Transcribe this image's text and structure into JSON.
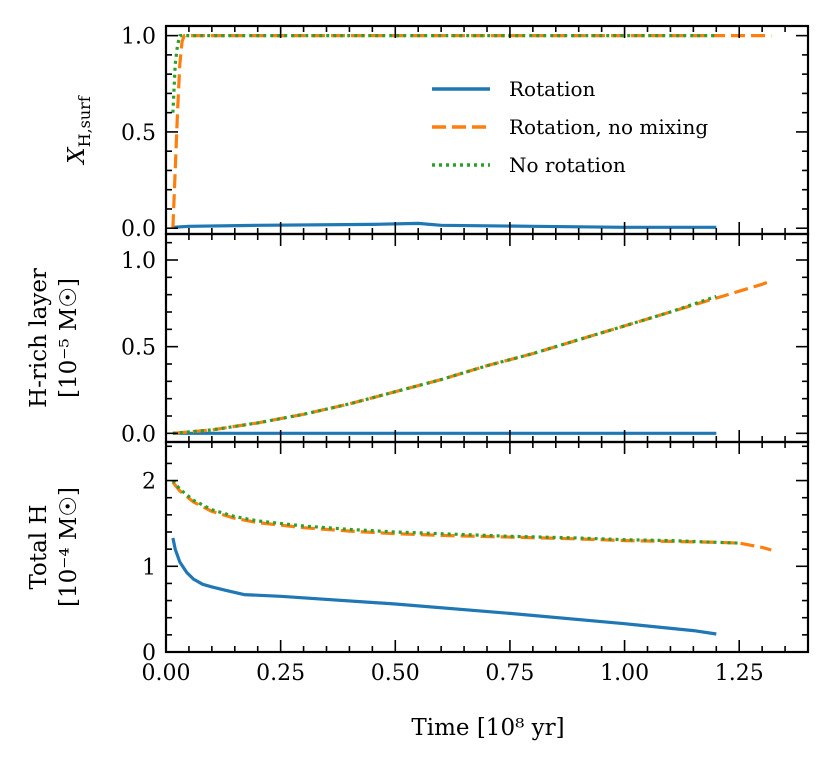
{
  "chart_data": {
    "type": "line",
    "shared_x": {
      "label": "Time [10⁸ yr]",
      "xlim": [
        0,
        1.4
      ],
      "ticks": [
        0.0,
        0.25,
        0.5,
        0.75,
        1.0,
        1.25
      ],
      "tick_labels": [
        "0.00",
        "0.25",
        "0.50",
        "0.75",
        "1.00",
        "1.25"
      ]
    },
    "legend": {
      "placement": "upper-right of top panel",
      "entries": [
        {
          "label": "Rotation",
          "color": "#1f77b4",
          "style": "solid"
        },
        {
          "label": "Rotation, no mixing",
          "color": "#ff7f0e",
          "style": "dashed"
        },
        {
          "label": "No rotation",
          "color": "#2ca02c",
          "style": "dotted"
        }
      ]
    },
    "panels": [
      {
        "id": "surface-h",
        "ylabel_main": "X",
        "ylabel_sub": "H,surf",
        "ylim": [
          -0.03,
          1.05
        ],
        "yticks": [
          0.0,
          0.5,
          1.0
        ],
        "ytick_labels": [
          "0.0",
          "0.5",
          "1.0"
        ],
        "series": [
          {
            "name": "Rotation",
            "color": "#1f77b4",
            "style": "solid",
            "points": [
              [
                0.015,
                0.005
              ],
              [
                0.05,
                0.01
              ],
              [
                0.2,
                0.015
              ],
              [
                0.45,
                0.02
              ],
              [
                0.55,
                0.025
              ],
              [
                0.6,
                0.015
              ],
              [
                0.8,
                0.01
              ],
              [
                1.0,
                0.005
              ],
              [
                1.2,
                0.005
              ]
            ]
          },
          {
            "name": "Rotation, no mixing",
            "color": "#ff7f0e",
            "style": "dashed",
            "points": [
              [
                0.015,
                0.0
              ],
              [
                0.02,
                0.3
              ],
              [
                0.025,
                0.6
              ],
              [
                0.03,
                0.85
              ],
              [
                0.035,
                0.97
              ],
              [
                0.04,
                1.0
              ],
              [
                0.1,
                1.0
              ],
              [
                0.5,
                1.0
              ],
              [
                1.0,
                1.0
              ],
              [
                1.32,
                1.0
              ]
            ]
          },
          {
            "name": "No rotation",
            "color": "#2ca02c",
            "style": "dotted",
            "points": [
              [
                0.015,
                0.6
              ],
              [
                0.02,
                0.85
              ],
              [
                0.025,
                0.95
              ],
              [
                0.03,
                1.0
              ],
              [
                0.1,
                1.0
              ],
              [
                0.5,
                1.0
              ],
              [
                1.0,
                1.0
              ],
              [
                1.2,
                1.0
              ]
            ]
          }
        ]
      },
      {
        "id": "h-rich-layer",
        "ylabel_line1": "H-rich layer",
        "ylabel_line2": "[10⁻⁵ M☉]",
        "ylim": [
          -0.05,
          1.15
        ],
        "yticks": [
          0.0,
          0.5,
          1.0
        ],
        "ytick_labels": [
          "0.0",
          "0.5",
          "1.0"
        ],
        "series": [
          {
            "name": "Rotation",
            "color": "#1f77b4",
            "style": "solid",
            "points": [
              [
                0.015,
                0.0
              ],
              [
                1.2,
                0.0
              ]
            ]
          },
          {
            "name": "Rotation, no mixing",
            "color": "#ff7f0e",
            "style": "dashed",
            "points": [
              [
                0.015,
                0.0
              ],
              [
                0.05,
                0.008
              ],
              [
                0.1,
                0.02
              ],
              [
                0.2,
                0.06
              ],
              [
                0.3,
                0.11
              ],
              [
                0.4,
                0.17
              ],
              [
                0.5,
                0.24
              ],
              [
                0.6,
                0.31
              ],
              [
                0.7,
                0.39
              ],
              [
                0.8,
                0.46
              ],
              [
                0.9,
                0.54
              ],
              [
                1.0,
                0.62
              ],
              [
                1.1,
                0.7
              ],
              [
                1.2,
                0.78
              ],
              [
                1.25,
                0.82
              ],
              [
                1.3,
                0.86
              ],
              [
                1.32,
                0.88
              ]
            ]
          },
          {
            "name": "No rotation",
            "color": "#2ca02c",
            "style": "dotted",
            "points": [
              [
                0.015,
                0.0
              ],
              [
                0.05,
                0.008
              ],
              [
                0.1,
                0.02
              ],
              [
                0.2,
                0.06
              ],
              [
                0.3,
                0.11
              ],
              [
                0.4,
                0.17
              ],
              [
                0.5,
                0.24
              ],
              [
                0.6,
                0.31
              ],
              [
                0.7,
                0.39
              ],
              [
                0.8,
                0.46
              ],
              [
                0.9,
                0.54
              ],
              [
                1.0,
                0.62
              ],
              [
                1.1,
                0.7
              ],
              [
                1.2,
                0.79
              ]
            ]
          }
        ]
      },
      {
        "id": "total-h",
        "ylabel_line1": "Total H",
        "ylabel_line2": "[10⁻⁴ M☉]",
        "ylim": [
          0,
          2.45
        ],
        "yticks": [
          0,
          1,
          2
        ],
        "ytick_labels": [
          "0",
          "1",
          "2"
        ],
        "series": [
          {
            "name": "Rotation",
            "color": "#1f77b4",
            "style": "solid",
            "points": [
              [
                0.015,
                1.33
              ],
              [
                0.02,
                1.2
              ],
              [
                0.03,
                1.05
              ],
              [
                0.045,
                0.93
              ],
              [
                0.06,
                0.85
              ],
              [
                0.08,
                0.79
              ],
              [
                0.1,
                0.76
              ],
              [
                0.13,
                0.72
              ],
              [
                0.17,
                0.67
              ],
              [
                0.25,
                0.65
              ],
              [
                0.5,
                0.56
              ],
              [
                0.75,
                0.45
              ],
              [
                1.0,
                0.33
              ],
              [
                1.15,
                0.25
              ],
              [
                1.2,
                0.21
              ]
            ]
          },
          {
            "name": "Rotation, no mixing",
            "color": "#ff7f0e",
            "style": "dashed",
            "points": [
              [
                0.015,
                1.98
              ],
              [
                0.03,
                1.88
              ],
              [
                0.06,
                1.75
              ],
              [
                0.1,
                1.64
              ],
              [
                0.15,
                1.56
              ],
              [
                0.2,
                1.51
              ],
              [
                0.3,
                1.45
              ],
              [
                0.4,
                1.41
              ],
              [
                0.5,
                1.38
              ],
              [
                0.6,
                1.36
              ],
              [
                0.75,
                1.34
              ],
              [
                0.9,
                1.32
              ],
              [
                1.0,
                1.3
              ],
              [
                1.1,
                1.29
              ],
              [
                1.2,
                1.28
              ],
              [
                1.25,
                1.27
              ],
              [
                1.3,
                1.22
              ],
              [
                1.32,
                1.19
              ]
            ]
          },
          {
            "name": "No rotation",
            "color": "#2ca02c",
            "style": "dotted",
            "points": [
              [
                0.015,
                2.0
              ],
              [
                0.03,
                1.9
              ],
              [
                0.06,
                1.77
              ],
              [
                0.1,
                1.66
              ],
              [
                0.15,
                1.58
              ],
              [
                0.2,
                1.53
              ],
              [
                0.3,
                1.47
              ],
              [
                0.4,
                1.43
              ],
              [
                0.5,
                1.4
              ],
              [
                0.6,
                1.38
              ],
              [
                0.75,
                1.35
              ],
              [
                0.9,
                1.33
              ],
              [
                1.0,
                1.31
              ],
              [
                1.1,
                1.3
              ],
              [
                1.2,
                1.28
              ],
              [
                1.25,
                1.27
              ]
            ]
          }
        ]
      }
    ]
  }
}
